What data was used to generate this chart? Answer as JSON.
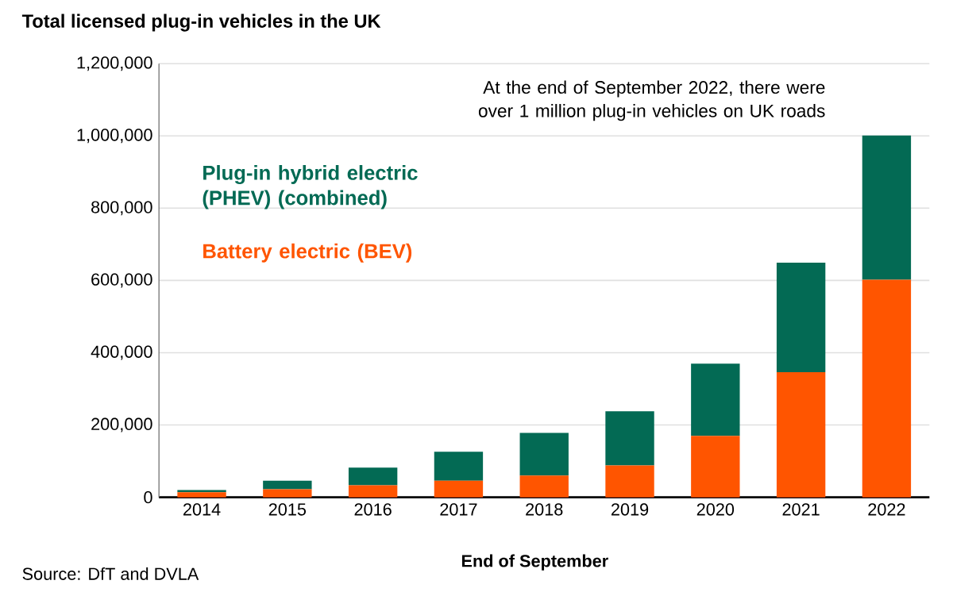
{
  "chart_data": {
    "type": "bar",
    "stacked": true,
    "title": "Total licensed plug-in vehicles in the UK",
    "xlabel": "End of September",
    "categories": [
      "2014",
      "2015",
      "2016",
      "2017",
      "2018",
      "2019",
      "2020",
      "2021",
      "2022"
    ],
    "series": [
      {
        "name": "Battery electric (BEV)",
        "color": "#ff5500",
        "values": [
          14000,
          22000,
          33000,
          46000,
          60000,
          88000,
          170000,
          346000,
          602000
        ]
      },
      {
        "name": "Plug-in hybrid electric (PHEV) (combined)",
        "color": "#036a54",
        "values": [
          6000,
          24000,
          49000,
          80000,
          118000,
          150000,
          200000,
          303000,
          399000
        ]
      }
    ],
    "ylim": [
      0,
      1200000
    ],
    "yticks": [
      0,
      {
        "value": 200000,
        "label": "200,000"
      },
      {
        "value": 400000,
        "label": "400,000"
      },
      {
        "value": 600000,
        "label": "600,000"
      },
      {
        "value": 800000,
        "label": "800,000"
      },
      {
        "value": 1000000,
        "label": "1,000,000"
      },
      {
        "value": 1200000,
        "label": "1,200,000"
      }
    ],
    "grid": "y",
    "legend": "top left",
    "annotations": [
      "At the end of September 2022, there were over 1 million plug-in vehicles on UK roads",
      "Source: DfT and DVLA"
    ]
  }
}
